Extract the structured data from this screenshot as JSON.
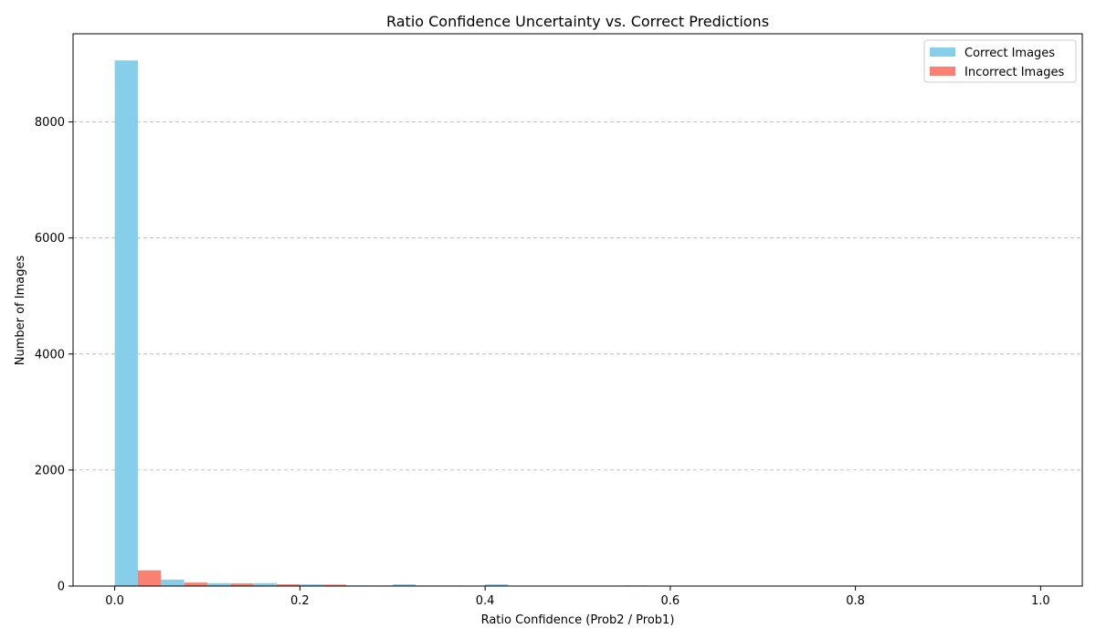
{
  "chart_data": {
    "type": "bar",
    "title": "Ratio Confidence Uncertainty vs. Correct Predictions",
    "xlabel": "Ratio Confidence (Prob2 / Prob1)",
    "ylabel": "Number of Images",
    "xlim": [
      -0.045,
      1.045
    ],
    "ylim": [
      0,
      9520
    ],
    "grid": "y",
    "grid_style": "dashed",
    "legend_position": "top-right",
    "x_ticks": [
      {
        "value": 0.0,
        "label": "0.0"
      },
      {
        "value": 0.2,
        "label": "0.2"
      },
      {
        "value": 0.4,
        "label": "0.4"
      },
      {
        "value": 0.6,
        "label": "0.6"
      },
      {
        "value": 0.8,
        "label": "0.8"
      },
      {
        "value": 1.0,
        "label": "1.0"
      }
    ],
    "y_ticks": [
      {
        "value": 0,
        "label": "0"
      },
      {
        "value": 2000,
        "label": "2000"
      },
      {
        "value": 4000,
        "label": "4000"
      },
      {
        "value": 6000,
        "label": "6000"
      },
      {
        "value": 8000,
        "label": "8000"
      }
    ],
    "bin_edges": [
      0.0,
      0.05,
      0.1,
      0.15,
      0.2,
      0.25,
      0.3,
      0.35,
      0.4,
      0.45,
      0.5,
      0.55,
      0.6,
      0.65,
      0.7,
      0.75,
      0.8,
      0.85,
      0.9,
      0.95,
      1.0
    ],
    "series": [
      {
        "name": "Correct Images",
        "color": "#87ceeb",
        "values": [
          9060,
          110,
          50,
          50,
          30,
          12,
          30,
          10,
          30,
          8,
          8,
          10,
          6,
          6,
          5,
          6,
          6,
          6,
          6,
          5
        ]
      },
      {
        "name": "Incorrect Images",
        "color": "#fa8072",
        "values": [
          270,
          60,
          45,
          30,
          25,
          10,
          10,
          8,
          8,
          6,
          6,
          6,
          5,
          5,
          5,
          5,
          5,
          5,
          5,
          5
        ]
      }
    ]
  }
}
